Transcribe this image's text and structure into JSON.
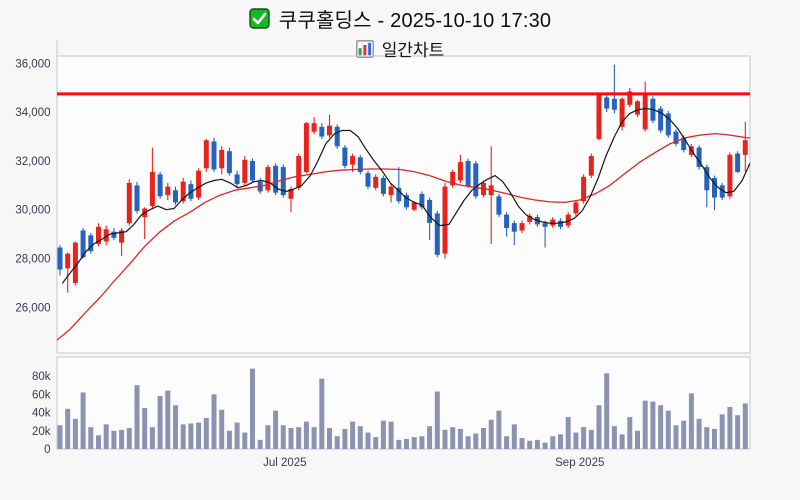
{
  "header": {
    "title": "쿠쿠홀딩스 - 2025-10-10 17:30",
    "subtitle": "일간차트",
    "title_icon": "green-checkbox",
    "subtitle_icon": "bar-chart"
  },
  "chart_data": {
    "type": "candlestick",
    "title": "쿠쿠홀딩스 일간차트 2025-10-10 17:30",
    "price_axis": {
      "ticks": [
        {
          "v": 26000,
          "label": "26,000"
        },
        {
          "v": 28000,
          "label": "28,000"
        },
        {
          "v": 30000,
          "label": "30,000"
        },
        {
          "v": 32000,
          "label": "32,000"
        },
        {
          "v": 34000,
          "label": "34,000"
        },
        {
          "v": 36000,
          "label": "36,000"
        }
      ],
      "min": 24100,
      "max": 36300,
      "grid": false
    },
    "alert_line": {
      "value": 34750,
      "color": "#f60c0c"
    },
    "x_axis": {
      "labels": [
        {
          "i": 29.2,
          "label": "Jul 2025"
        },
        {
          "i": 67.5,
          "label": "Sep 2025"
        }
      ]
    },
    "candles_ohlc": [
      [
        28450,
        28550,
        27300,
        27550
      ],
      [
        27600,
        28250,
        26600,
        28200
      ],
      [
        27000,
        28700,
        26900,
        28650
      ],
      [
        29150,
        29250,
        28000,
        28050
      ],
      [
        28950,
        29050,
        28200,
        28300
      ],
      [
        28600,
        29450,
        28500,
        29300
      ],
      [
        28700,
        29350,
        28550,
        29200
      ],
      [
        29100,
        29250,
        28750,
        28850
      ],
      [
        28650,
        29250,
        28100,
        29150
      ],
      [
        29450,
        31250,
        29350,
        31100
      ],
      [
        31000,
        31150,
        29850,
        29950
      ],
      [
        29700,
        30100,
        28800,
        30050
      ],
      [
        30150,
        32550,
        30050,
        31550
      ],
      [
        31450,
        31550,
        30450,
        30550
      ],
      [
        30600,
        31100,
        30400,
        30950
      ],
      [
        30800,
        30950,
        30200,
        30300
      ],
      [
        30350,
        31300,
        30250,
        31150
      ],
      [
        31050,
        31200,
        30350,
        30450
      ],
      [
        30500,
        31700,
        30400,
        31600
      ],
      [
        31700,
        32900,
        31550,
        32850
      ],
      [
        32800,
        32950,
        31550,
        31650
      ],
      [
        31700,
        32600,
        31450,
        32450
      ],
      [
        32400,
        32550,
        31400,
        31500
      ],
      [
        31450,
        31600,
        30900,
        31050
      ],
      [
        31100,
        32200,
        31000,
        32050
      ],
      [
        32000,
        32100,
        31100,
        31200
      ],
      [
        31150,
        31300,
        30650,
        30750
      ],
      [
        30800,
        31850,
        30700,
        31750
      ],
      [
        31800,
        31900,
        30600,
        30700
      ],
      [
        31750,
        31850,
        30500,
        30600
      ],
      [
        30450,
        30950,
        29900,
        30850
      ],
      [
        30900,
        32300,
        30800,
        32200
      ],
      [
        31550,
        33600,
        31500,
        33550
      ],
      [
        33200,
        33800,
        33100,
        33550
      ],
      [
        33400,
        33550,
        32900,
        33000
      ],
      [
        33050,
        33900,
        32950,
        33450
      ],
      [
        33400,
        33500,
        32500,
        32600
      ],
      [
        32550,
        32650,
        31700,
        31800
      ],
      [
        31850,
        32300,
        31550,
        32200
      ],
      [
        32150,
        32250,
        31450,
        31550
      ],
      [
        31500,
        31600,
        30850,
        30950
      ],
      [
        30900,
        31450,
        30800,
        31350
      ],
      [
        31300,
        31400,
        30550,
        30650
      ],
      [
        30600,
        31050,
        30300,
        30950
      ],
      [
        30900,
        31750,
        30250,
        30350
      ],
      [
        30600,
        30700,
        30000,
        30100
      ],
      [
        30000,
        30350,
        29950,
        30300
      ],
      [
        30650,
        30750,
        30000,
        30100
      ],
      [
        30400,
        30500,
        28760,
        29460
      ],
      [
        29850,
        29950,
        28050,
        28150
      ],
      [
        28200,
        31100,
        28000,
        30950
      ],
      [
        31000,
        31650,
        30900,
        31550
      ],
      [
        31200,
        32250,
        31100,
        31950
      ],
      [
        32000,
        32100,
        30900,
        30950
      ],
      [
        31900,
        32000,
        30450,
        30550
      ],
      [
        30600,
        31200,
        30500,
        31100
      ],
      [
        30600,
        32600,
        28600,
        31000
      ],
      [
        30550,
        30650,
        29700,
        29800
      ],
      [
        29800,
        29900,
        28900,
        29250
      ],
      [
        29450,
        29550,
        28550,
        29100
      ],
      [
        29150,
        29550,
        29050,
        29450
      ],
      [
        29500,
        29850,
        29400,
        29750
      ],
      [
        29700,
        29800,
        29300,
        29400
      ],
      [
        29450,
        29550,
        28450,
        29300
      ],
      [
        29350,
        29700,
        29250,
        29600
      ],
      [
        29550,
        29650,
        29200,
        29300
      ],
      [
        29350,
        29900,
        29250,
        29800
      ],
      [
        29850,
        30400,
        29750,
        30300
      ],
      [
        30350,
        31450,
        30250,
        31350
      ],
      [
        31400,
        32300,
        31300,
        32200
      ],
      [
        32900,
        34750,
        32850,
        34700
      ],
      [
        34600,
        34700,
        34000,
        34150
      ],
      [
        34550,
        35950,
        33950,
        34100
      ],
      [
        33400,
        34600,
        33250,
        34550
      ],
      [
        34300,
        35000,
        34200,
        34850
      ],
      [
        33900,
        34500,
        33800,
        34450
      ],
      [
        33300,
        35250,
        33200,
        34800
      ],
      [
        34550,
        34650,
        33550,
        33650
      ],
      [
        34150,
        34250,
        33150,
        33250
      ],
      [
        33950,
        34050,
        32950,
        33050
      ],
      [
        33200,
        33300,
        32600,
        32700
      ],
      [
        32950,
        33050,
        32350,
        32450
      ],
      [
        32250,
        32700,
        32150,
        32600
      ],
      [
        32550,
        32650,
        31650,
        31750
      ],
      [
        31750,
        31850,
        30100,
        30800
      ],
      [
        31300,
        31400,
        29980,
        30500
      ],
      [
        31000,
        31100,
        30400,
        30500
      ],
      [
        30550,
        32350,
        30450,
        32250
      ],
      [
        32300,
        32400,
        31500,
        31550
      ],
      [
        32250,
        33600,
        31550,
        32850
      ]
    ],
    "volume_k": [
      26,
      44,
      33,
      62,
      24,
      15,
      27,
      20,
      21,
      23,
      70,
      45,
      24,
      58,
      64,
      48,
      27,
      28,
      29,
      34,
      60,
      43,
      20,
      29,
      18,
      88,
      10,
      26,
      42,
      26,
      23,
      24,
      30,
      24,
      77,
      23,
      14,
      22,
      30,
      25,
      18,
      13,
      31,
      30,
      10,
      11,
      13,
      14,
      25,
      63,
      21,
      24,
      22,
      14,
      17,
      23,
      32,
      42,
      14,
      27,
      12,
      9,
      10,
      7,
      14,
      16,
      35,
      18,
      24,
      21,
      48,
      83,
      25,
      16,
      35,
      20,
      53,
      52,
      48,
      42,
      26,
      31,
      61,
      33,
      24,
      22,
      38,
      46,
      37,
      50
    ],
    "volume_axis": {
      "ticks": [
        {
          "v": 0,
          "label": "0"
        },
        {
          "v": 20,
          "label": "20k"
        },
        {
          "v": 40,
          "label": "40k"
        },
        {
          "v": 60,
          "label": "60k"
        },
        {
          "v": 80,
          "label": "80k"
        }
      ],
      "max": 100
    },
    "ma_fast": [
      [
        0.3,
        26980
      ],
      [
        1.3,
        27400
      ],
      [
        2.3,
        27800
      ],
      [
        3.4,
        28300
      ],
      [
        4.4,
        28600
      ],
      [
        5.5,
        28800
      ],
      [
        6.5,
        29000
      ],
      [
        7.5,
        29050
      ],
      [
        8.6,
        29100
      ],
      [
        9.6,
        29400
      ],
      [
        10.6,
        29800
      ],
      [
        11.7,
        30000
      ],
      [
        12.7,
        30150
      ],
      [
        13.8,
        30000
      ],
      [
        14.8,
        30050
      ],
      [
        15.8,
        30400
      ],
      [
        16.9,
        30700
      ],
      [
        17.9,
        30900
      ],
      [
        19,
        31100
      ],
      [
        20,
        31200
      ],
      [
        21,
        31250
      ],
      [
        22.1,
        31100
      ],
      [
        23.1,
        30900
      ],
      [
        24.2,
        31000
      ],
      [
        25.2,
        31150
      ],
      [
        26.2,
        31200
      ],
      [
        27.3,
        31100
      ],
      [
        28.3,
        30850
      ],
      [
        29.4,
        30750
      ],
      [
        30.4,
        30850
      ],
      [
        31.4,
        31000
      ],
      [
        32.5,
        31400
      ],
      [
        33.5,
        32000
      ],
      [
        34.5,
        32700
      ],
      [
        35.6,
        33100
      ],
      [
        36.6,
        33250
      ],
      [
        37.7,
        33250
      ],
      [
        38.7,
        33000
      ],
      [
        39.7,
        32500
      ],
      [
        40.8,
        32000
      ],
      [
        41.8,
        31600
      ],
      [
        42.9,
        31100
      ],
      [
        43.9,
        30800
      ],
      [
        44.9,
        30500
      ],
      [
        46,
        30300
      ],
      [
        47,
        30200
      ],
      [
        48.1,
        29700
      ],
      [
        49.3,
        29350
      ],
      [
        50.5,
        29400
      ],
      [
        51.5,
        29900
      ],
      [
        52.5,
        30400
      ],
      [
        53.5,
        30800
      ],
      [
        54.5,
        31050
      ],
      [
        55.5,
        31250
      ],
      [
        56.5,
        31400
      ],
      [
        57.5,
        31150
      ],
      [
        58.5,
        30700
      ],
      [
        59.5,
        30150
      ],
      [
        60.5,
        29800
      ],
      [
        61.6,
        29600
      ],
      [
        62.6,
        29500
      ],
      [
        63.6,
        29450
      ],
      [
        64.7,
        29450
      ],
      [
        65.7,
        29500
      ],
      [
        66.8,
        29650
      ],
      [
        67.8,
        29950
      ],
      [
        68.8,
        30500
      ],
      [
        69.9,
        31300
      ],
      [
        70.9,
        32200
      ],
      [
        72,
        33000
      ],
      [
        73,
        33600
      ],
      [
        74,
        33950
      ],
      [
        75.1,
        34100
      ],
      [
        76.1,
        34150
      ],
      [
        77.1,
        34100
      ],
      [
        78.2,
        33950
      ],
      [
        79.2,
        33700
      ],
      [
        80.3,
        33300
      ],
      [
        81.3,
        32800
      ],
      [
        82.3,
        32300
      ],
      [
        83.4,
        31800
      ],
      [
        84.4,
        31300
      ],
      [
        85.5,
        30900
      ],
      [
        86.5,
        30700
      ],
      [
        87.5,
        30750
      ],
      [
        88.6,
        31200
      ],
      [
        89.6,
        31900
      ]
    ],
    "ma_slow": [
      [
        -0.4,
        24650
      ],
      [
        1.3,
        25100
      ],
      [
        3.2,
        25750
      ],
      [
        5.2,
        26400
      ],
      [
        7.1,
        27100
      ],
      [
        9.1,
        27800
      ],
      [
        11,
        28500
      ],
      [
        13,
        29100
      ],
      [
        14.9,
        29550
      ],
      [
        16.9,
        29900
      ],
      [
        18.8,
        30300
      ],
      [
        20.8,
        30600
      ],
      [
        22.7,
        30800
      ],
      [
        24.7,
        30900
      ],
      [
        26.6,
        31000
      ],
      [
        28.6,
        31200
      ],
      [
        30.5,
        31350
      ],
      [
        32.5,
        31450
      ],
      [
        34.4,
        31550
      ],
      [
        36.4,
        31620
      ],
      [
        38.3,
        31650
      ],
      [
        40.3,
        31670
      ],
      [
        42.2,
        31670
      ],
      [
        44.2,
        31650
      ],
      [
        46.1,
        31550
      ],
      [
        48,
        31400
      ],
      [
        50.3,
        31150
      ],
      [
        52.2,
        31000
      ],
      [
        54.2,
        30900
      ],
      [
        55.8,
        30820
      ],
      [
        57.8,
        30680
      ],
      [
        59.7,
        30520
      ],
      [
        61.7,
        30400
      ],
      [
        63.6,
        30320
      ],
      [
        65.6,
        30300
      ],
      [
        67.5,
        30400
      ],
      [
        69.5,
        30650
      ],
      [
        71.4,
        31000
      ],
      [
        73.4,
        31500
      ],
      [
        75.3,
        31950
      ],
      [
        77.3,
        32350
      ],
      [
        79.2,
        32700
      ],
      [
        81.2,
        32950
      ],
      [
        83.1,
        33060
      ],
      [
        85.1,
        33120
      ],
      [
        87,
        33060
      ],
      [
        89,
        32960
      ],
      [
        89.6,
        32940
      ]
    ],
    "colors": {
      "up": "#e8231d",
      "down": "#2563bf",
      "ma_fast": "#161616",
      "ma_slow": "#e02421",
      "volume": "#8b93b1",
      "border": "#c5c5cf",
      "label": "#383a4e",
      "plot_bg": "#fcfcfd",
      "page_bg": "#f7f7f8"
    },
    "legend_position": "none"
  }
}
